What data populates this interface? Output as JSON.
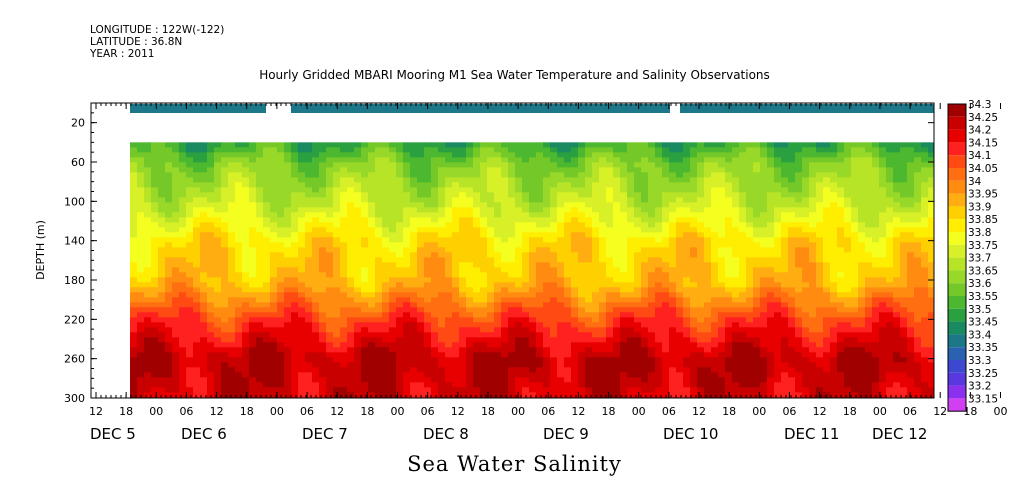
{
  "header": {
    "longitude": "LONGITUDE : 122W(-122)",
    "latitude": "LATITUDE : 36.8N",
    "year": "YEAR : 2011"
  },
  "chart_data": {
    "type": "heatmap",
    "title": "Hourly Gridded MBARI Mooring M1 Sea Water Temperature and Salinity Observations",
    "xlabel": "Sea Water Salinity",
    "ylabel": "DEPTH (m)",
    "ylim": [
      300,
      0
    ],
    "y_ticks": [
      20,
      60,
      100,
      140,
      180,
      220,
      260,
      300
    ],
    "x_hour_ticks": [
      "12",
      "18",
      "00",
      "06",
      "12",
      "18",
      "00",
      "06",
      "12",
      "18",
      "00",
      "06",
      "12",
      "18",
      "00",
      "06",
      "12",
      "18",
      "00",
      "06",
      "12",
      "18",
      "00",
      "06",
      "12",
      "18",
      "00",
      "06",
      "12",
      "18",
      "00",
      "06"
    ],
    "x_day_labels": [
      "DEC  5",
      "DEC  6",
      "DEC  7",
      "DEC  8",
      "DEC  9",
      "DEC 10",
      "DEC 11",
      "DEC 12"
    ],
    "colorbar_levels": [
      "34.3",
      "34.25",
      "34.2",
      "34.15",
      "34.1",
      "34.05",
      "34",
      "33.95",
      "33.9",
      "33.85",
      "33.8",
      "33.75",
      "33.7",
      "33.65",
      "33.6",
      "33.55",
      "33.5",
      "33.45",
      "33.4",
      "33.35",
      "33.3",
      "33.25",
      "33.2",
      "33.15"
    ],
    "colorbar_colors": [
      "#a00000",
      "#c80000",
      "#e80000",
      "#ff2020",
      "#ff4a14",
      "#ff6e10",
      "#ff8c10",
      "#ffad10",
      "#ffd000",
      "#ffee00",
      "#f4ff20",
      "#d8f028",
      "#b8e428",
      "#98d828",
      "#74c828",
      "#4cb830",
      "#2aa040",
      "#1a8a60",
      "#1c7888",
      "#2a62b0",
      "#3c48d0",
      "#5a38e0",
      "#8c30f0",
      "#d040f0"
    ],
    "depth_profile": [
      {
        "depth": 40,
        "salinity": 33.5
      },
      {
        "depth": 60,
        "salinity": 33.6
      },
      {
        "depth": 100,
        "salinity": 33.7
      },
      {
        "depth": 140,
        "salinity": 33.85
      },
      {
        "depth": 180,
        "salinity": 33.9
      },
      {
        "depth": 220,
        "salinity": 34.1
      },
      {
        "depth": 260,
        "salinity": 34.25
      },
      {
        "depth": 300,
        "salinity": 34.2
      }
    ],
    "surface_band_salinity": 33.35
  }
}
